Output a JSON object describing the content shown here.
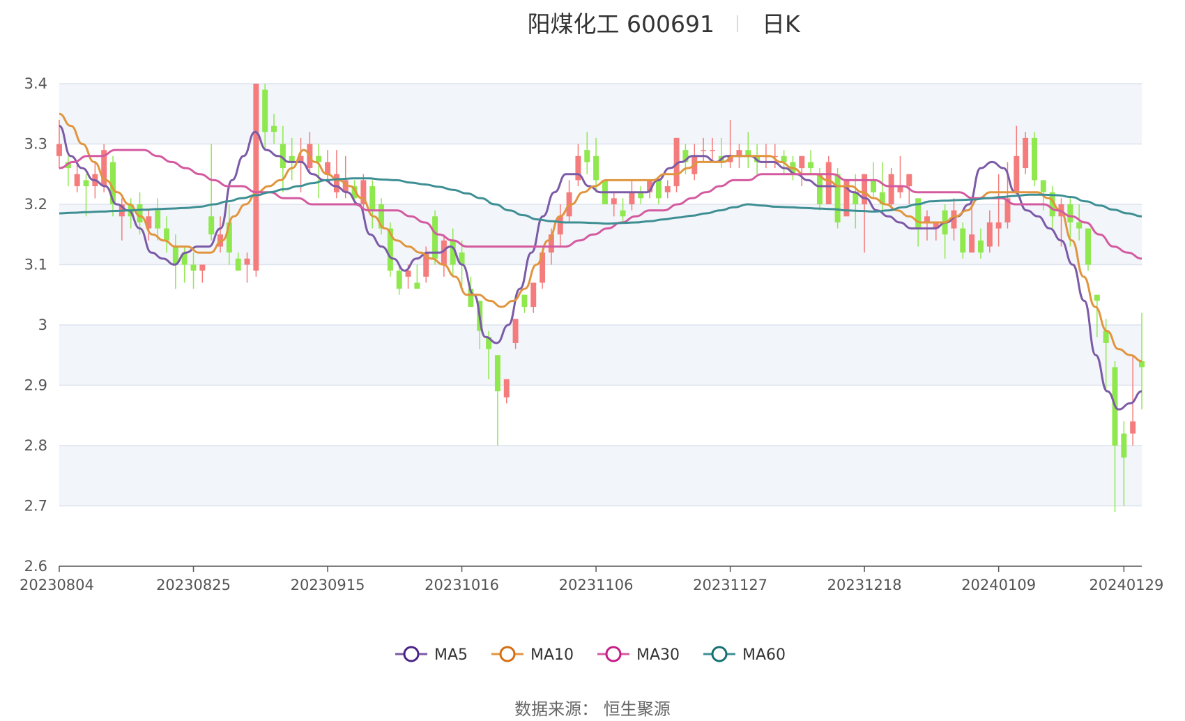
{
  "title": {
    "stock_name": "阳煤化工 600691",
    "period_label": "日K"
  },
  "source_text": "数据来源： 恒生聚源",
  "legend": [
    {
      "name": "MA5",
      "color": "#7b5aa6",
      "ring_color": "#4a2388"
    },
    {
      "name": "MA10",
      "color": "#e0953e",
      "ring_color": "#d66d12"
    },
    {
      "name": "MA30",
      "color": "#d45aa0",
      "ring_color": "#c41e86"
    },
    {
      "name": "MA60",
      "color": "#3e8f93",
      "ring_color": "#16706f"
    }
  ],
  "colors": {
    "up": "#f47c7c",
    "down": "#8fe84e",
    "grid": "#dde3ee",
    "band": "#f2f5fa",
    "axis": "#555555"
  },
  "chart_data": {
    "type": "candlestick",
    "title": "阳煤化工 600691 日K",
    "ylim": [
      2.6,
      3.4
    ],
    "y_ticks": [
      "2.6",
      "2.7",
      "2.8",
      "2.9",
      "3",
      "3.1",
      "3.2",
      "3.3",
      "3.4"
    ],
    "x_ticks": [
      {
        "label": "20230804",
        "index": 0
      },
      {
        "label": "20230825",
        "index": 15
      },
      {
        "label": "20230915",
        "index": 30
      },
      {
        "label": "20231016",
        "index": 45
      },
      {
        "label": "20231106",
        "index": 60
      },
      {
        "label": "20231127",
        "index": 75
      },
      {
        "label": "20231218",
        "index": 90
      },
      {
        "label": "20240109",
        "index": 105
      },
      {
        "label": "20240129",
        "index": 119
      }
    ],
    "ohlc": [
      [
        3.28,
        3.3,
        3.34,
        3.26
      ],
      [
        3.27,
        3.26,
        3.28,
        3.23
      ],
      [
        3.23,
        3.25,
        3.27,
        3.22
      ],
      [
        3.24,
        3.23,
        3.25,
        3.18
      ],
      [
        3.23,
        3.25,
        3.27,
        3.21
      ],
      [
        3.23,
        3.29,
        3.3,
        3.22
      ],
      [
        3.27,
        3.2,
        3.28,
        3.18
      ],
      [
        3.18,
        3.2,
        3.21,
        3.14
      ],
      [
        3.2,
        3.18,
        3.21,
        3.16
      ],
      [
        3.2,
        3.17,
        3.22,
        3.15
      ],
      [
        3.16,
        3.18,
        3.19,
        3.14
      ],
      [
        3.19,
        3.16,
        3.21,
        3.14
      ],
      [
        3.16,
        3.14,
        3.18,
        3.12
      ],
      [
        3.13,
        3.1,
        3.15,
        3.06
      ],
      [
        3.12,
        3.1,
        3.13,
        3.07
      ],
      [
        3.1,
        3.09,
        3.12,
        3.06
      ],
      [
        3.09,
        3.1,
        3.1,
        3.07
      ],
      [
        3.18,
        3.15,
        3.3,
        3.14
      ],
      [
        3.13,
        3.15,
        3.18,
        3.12
      ],
      [
        3.17,
        3.12,
        3.2,
        3.1
      ],
      [
        3.11,
        3.09,
        3.12,
        3.09
      ],
      [
        3.1,
        3.11,
        3.12,
        3.07
      ],
      [
        3.09,
        3.4,
        3.4,
        3.08
      ],
      [
        3.39,
        3.32,
        3.4,
        3.29
      ],
      [
        3.33,
        3.32,
        3.35,
        3.3
      ],
      [
        3.3,
        3.26,
        3.33,
        3.22
      ],
      [
        3.28,
        3.27,
        3.31,
        3.24
      ],
      [
        3.27,
        3.28,
        3.31,
        3.22
      ],
      [
        3.26,
        3.3,
        3.32,
        3.25
      ],
      [
        3.28,
        3.27,
        3.3,
        3.21
      ],
      [
        3.25,
        3.27,
        3.29,
        3.24
      ],
      [
        3.22,
        3.25,
        3.29,
        3.21
      ],
      [
        3.22,
        3.24,
        3.28,
        3.21
      ],
      [
        3.23,
        3.21,
        3.24,
        3.2
      ],
      [
        3.2,
        3.24,
        3.25,
        3.19
      ],
      [
        3.23,
        3.19,
        3.24,
        3.16
      ],
      [
        3.2,
        3.16,
        3.21,
        3.15
      ],
      [
        3.16,
        3.09,
        3.17,
        3.08
      ],
      [
        3.09,
        3.06,
        3.1,
        3.05
      ],
      [
        3.08,
        3.09,
        3.1,
        3.06
      ],
      [
        3.07,
        3.06,
        3.1,
        3.06
      ],
      [
        3.08,
        3.12,
        3.13,
        3.07
      ],
      [
        3.18,
        3.11,
        3.19,
        3.1
      ],
      [
        3.1,
        3.14,
        3.15,
        3.08
      ],
      [
        3.14,
        3.1,
        3.16,
        3.08
      ],
      [
        3.12,
        3.1,
        3.14,
        3.06
      ],
      [
        3.06,
        3.03,
        3.08,
        3.03
      ],
      [
        3.04,
        2.99,
        3.04,
        2.96
      ],
      [
        2.98,
        2.96,
        2.99,
        2.91
      ],
      [
        2.95,
        2.89,
        2.95,
        2.8
      ],
      [
        2.88,
        2.91,
        2.91,
        2.87
      ],
      [
        2.97,
        3.01,
        3.01,
        2.96
      ],
      [
        3.05,
        3.03,
        3.05,
        3.02
      ],
      [
        3.03,
        3.07,
        3.07,
        3.02
      ],
      [
        3.07,
        3.12,
        3.12,
        3.06
      ],
      [
        3.12,
        3.15,
        3.16,
        3.1
      ],
      [
        3.15,
        3.18,
        3.2,
        3.13
      ],
      [
        3.18,
        3.22,
        3.24,
        3.17
      ],
      [
        3.24,
        3.28,
        3.3,
        3.23
      ],
      [
        3.29,
        3.27,
        3.32,
        3.25
      ],
      [
        3.28,
        3.24,
        3.31,
        3.22
      ],
      [
        3.24,
        3.2,
        3.24,
        3.2
      ],
      [
        3.2,
        3.21,
        3.22,
        3.18
      ],
      [
        3.19,
        3.18,
        3.21,
        3.17
      ],
      [
        3.2,
        3.22,
        3.24,
        3.19
      ],
      [
        3.22,
        3.21,
        3.23,
        3.2
      ],
      [
        3.22,
        3.24,
        3.24,
        3.21
      ],
      [
        3.24,
        3.21,
        3.24,
        3.2
      ],
      [
        3.22,
        3.23,
        3.24,
        3.21
      ],
      [
        3.23,
        3.31,
        3.31,
        3.22
      ],
      [
        3.29,
        3.27,
        3.3,
        3.25
      ],
      [
        3.25,
        3.28,
        3.3,
        3.24
      ],
      [
        3.29,
        3.29,
        3.31,
        3.27
      ],
      [
        3.29,
        3.29,
        3.31,
        3.27
      ],
      [
        3.28,
        3.27,
        3.31,
        3.26
      ],
      [
        3.27,
        3.28,
        3.34,
        3.26
      ],
      [
        3.28,
        3.29,
        3.3,
        3.26
      ],
      [
        3.29,
        3.28,
        3.32,
        3.26
      ],
      [
        3.28,
        3.27,
        3.3,
        3.25
      ],
      [
        3.28,
        3.28,
        3.3,
        3.26
      ],
      [
        3.28,
        3.28,
        3.3,
        3.26
      ],
      [
        3.28,
        3.27,
        3.29,
        3.25
      ],
      [
        3.27,
        3.25,
        3.28,
        3.24
      ],
      [
        3.26,
        3.28,
        3.28,
        3.23
      ],
      [
        3.27,
        3.26,
        3.29,
        3.25
      ],
      [
        3.25,
        3.2,
        3.26,
        3.19
      ],
      [
        3.2,
        3.27,
        3.28,
        3.2
      ],
      [
        3.25,
        3.17,
        3.26,
        3.16
      ],
      [
        3.18,
        3.24,
        3.24,
        3.18
      ],
      [
        3.22,
        3.2,
        3.25,
        3.16
      ],
      [
        3.2,
        3.25,
        3.25,
        3.12
      ],
      [
        3.24,
        3.22,
        3.27,
        3.21
      ],
      [
        3.22,
        3.2,
        3.27,
        3.19
      ],
      [
        3.2,
        3.25,
        3.26,
        3.19
      ],
      [
        3.22,
        3.23,
        3.28,
        3.21
      ],
      [
        3.23,
        3.25,
        3.25,
        3.2
      ],
      [
        3.21,
        3.16,
        3.21,
        3.13
      ],
      [
        3.17,
        3.18,
        3.19,
        3.14
      ],
      [
        3.16,
        3.17,
        3.17,
        3.14
      ],
      [
        3.19,
        3.15,
        3.2,
        3.11
      ],
      [
        3.16,
        3.19,
        3.21,
        3.14
      ],
      [
        3.16,
        3.12,
        3.17,
        3.11
      ],
      [
        3.12,
        3.15,
        3.2,
        3.12
      ],
      [
        3.14,
        3.12,
        3.16,
        3.11
      ],
      [
        3.13,
        3.17,
        3.19,
        3.12
      ],
      [
        3.16,
        3.17,
        3.25,
        3.13
      ],
      [
        3.17,
        3.21,
        3.27,
        3.16
      ],
      [
        3.22,
        3.28,
        3.33,
        3.22
      ],
      [
        3.26,
        3.31,
        3.32,
        3.25
      ],
      [
        3.31,
        3.24,
        3.32,
        3.23
      ],
      [
        3.24,
        3.22,
        3.24,
        3.19
      ],
      [
        3.22,
        3.18,
        3.23,
        3.16
      ],
      [
        3.18,
        3.2,
        3.21,
        3.13
      ],
      [
        3.2,
        3.17,
        3.21,
        3.13
      ],
      [
        3.17,
        3.16,
        3.2,
        3.14
      ],
      [
        3.16,
        3.1,
        3.16,
        3.09
      ],
      [
        3.05,
        3.04,
        3.05,
        2.98
      ],
      [
        2.99,
        2.97,
        3.01,
        2.89
      ],
      [
        2.93,
        2.8,
        2.94,
        2.69
      ],
      [
        2.82,
        2.78,
        2.84,
        2.7
      ],
      [
        2.82,
        2.84,
        2.95,
        2.8
      ],
      [
        2.94,
        2.93,
        3.02,
        2.86
      ]
    ],
    "series": [
      {
        "name": "MA5",
        "values": [
          3.33,
          3.28,
          3.26,
          3.24,
          3.23,
          3.2,
          3.19,
          3.16,
          3.12,
          3.11,
          3.1,
          3.12,
          3.13,
          3.13,
          3.16,
          3.24,
          3.28,
          3.32,
          3.29,
          3.28,
          3.27,
          3.27,
          3.25,
          3.24,
          3.23,
          3.22,
          3.2,
          3.15,
          3.13,
          3.11,
          3.09,
          3.11,
          3.12,
          3.12,
          3.13,
          3.1,
          3.05,
          2.98,
          2.97,
          3.0,
          3.06,
          3.12,
          3.18,
          3.22,
          3.25,
          3.25,
          3.23,
          3.22,
          3.22,
          3.22,
          3.22,
          3.22,
          3.24,
          3.26,
          3.27,
          3.28,
          3.28,
          3.27,
          3.28,
          3.28,
          3.28,
          3.27,
          3.27,
          3.26,
          3.25,
          3.24,
          3.23,
          3.23,
          3.23,
          3.22,
          3.21,
          3.19,
          3.18,
          3.17,
          3.16,
          3.16,
          3.16,
          3.17,
          3.18,
          3.2,
          3.26,
          3.27,
          3.26,
          3.22,
          3.19,
          3.18,
          3.16,
          3.14,
          3.1,
          3.04,
          2.95,
          2.89,
          2.86,
          2.87,
          2.89
        ]
      },
      {
        "name": "MA10",
        "values": [
          3.35,
          3.33,
          3.3,
          3.27,
          3.24,
          3.22,
          3.2,
          3.18,
          3.15,
          3.14,
          3.13,
          3.13,
          3.12,
          3.12,
          3.14,
          3.18,
          3.2,
          3.22,
          3.23,
          3.24,
          3.26,
          3.29,
          3.27,
          3.25,
          3.24,
          3.23,
          3.21,
          3.18,
          3.16,
          3.14,
          3.13,
          3.12,
          3.11,
          3.1,
          3.08,
          3.05,
          3.05,
          3.04,
          3.03,
          3.04,
          3.06,
          3.1,
          3.14,
          3.18,
          3.2,
          3.22,
          3.23,
          3.24,
          3.24,
          3.24,
          3.24,
          3.24,
          3.25,
          3.25,
          3.26,
          3.27,
          3.27,
          3.27,
          3.28,
          3.28,
          3.28,
          3.28,
          3.27,
          3.26,
          3.25,
          3.25,
          3.24,
          3.23,
          3.23,
          3.22,
          3.21,
          3.2,
          3.19,
          3.18,
          3.17,
          3.17,
          3.17,
          3.18,
          3.19,
          3.21,
          3.22,
          3.22,
          3.22,
          3.22,
          3.22,
          3.21,
          3.19,
          3.14,
          3.08,
          3.03,
          2.99,
          2.96,
          2.95,
          2.94
        ]
      },
      {
        "name": "MA30",
        "values": [
          3.26,
          3.27,
          3.28,
          3.28,
          3.29,
          3.29,
          3.29,
          3.28,
          3.27,
          3.26,
          3.25,
          3.24,
          3.23,
          3.23,
          3.22,
          3.22,
          3.21,
          3.21,
          3.2,
          3.2,
          3.2,
          3.2,
          3.19,
          3.19,
          3.19,
          3.18,
          3.17,
          3.15,
          3.14,
          3.13,
          3.13,
          3.13,
          3.13,
          3.13,
          3.13,
          3.13,
          3.13,
          3.14,
          3.15,
          3.16,
          3.17,
          3.18,
          3.19,
          3.19,
          3.2,
          3.21,
          3.22,
          3.23,
          3.24,
          3.24,
          3.25,
          3.25,
          3.25,
          3.25,
          3.25,
          3.25,
          3.24,
          3.24,
          3.24,
          3.23,
          3.23,
          3.22,
          3.22,
          3.22,
          3.22,
          3.21,
          3.21,
          3.21,
          3.2,
          3.2,
          3.2,
          3.19,
          3.18,
          3.17,
          3.15,
          3.13,
          3.12,
          3.11
        ]
      },
      {
        "name": "MA60",
        "values": [
          3.185,
          3.186,
          3.187,
          3.188,
          3.189,
          3.19,
          3.191,
          3.192,
          3.193,
          3.194,
          3.196,
          3.2,
          3.205,
          3.21,
          3.215,
          3.22,
          3.225,
          3.23,
          3.235,
          3.24,
          3.242,
          3.243,
          3.243,
          3.241,
          3.24,
          3.236,
          3.233,
          3.229,
          3.224,
          3.218,
          3.21,
          3.2,
          3.19,
          3.182,
          3.175,
          3.172,
          3.17,
          3.17,
          3.169,
          3.168,
          3.169,
          3.17,
          3.172,
          3.175,
          3.178,
          3.181,
          3.185,
          3.19,
          3.195,
          3.2,
          3.198,
          3.196,
          3.195,
          3.194,
          3.193,
          3.192,
          3.19,
          3.189,
          3.188,
          3.19,
          3.195,
          3.2,
          3.205,
          3.206,
          3.207,
          3.208,
          3.21,
          3.212,
          3.214,
          3.216,
          3.216,
          3.215,
          3.212,
          3.205,
          3.198,
          3.191,
          3.185,
          3.18
        ]
      }
    ]
  }
}
